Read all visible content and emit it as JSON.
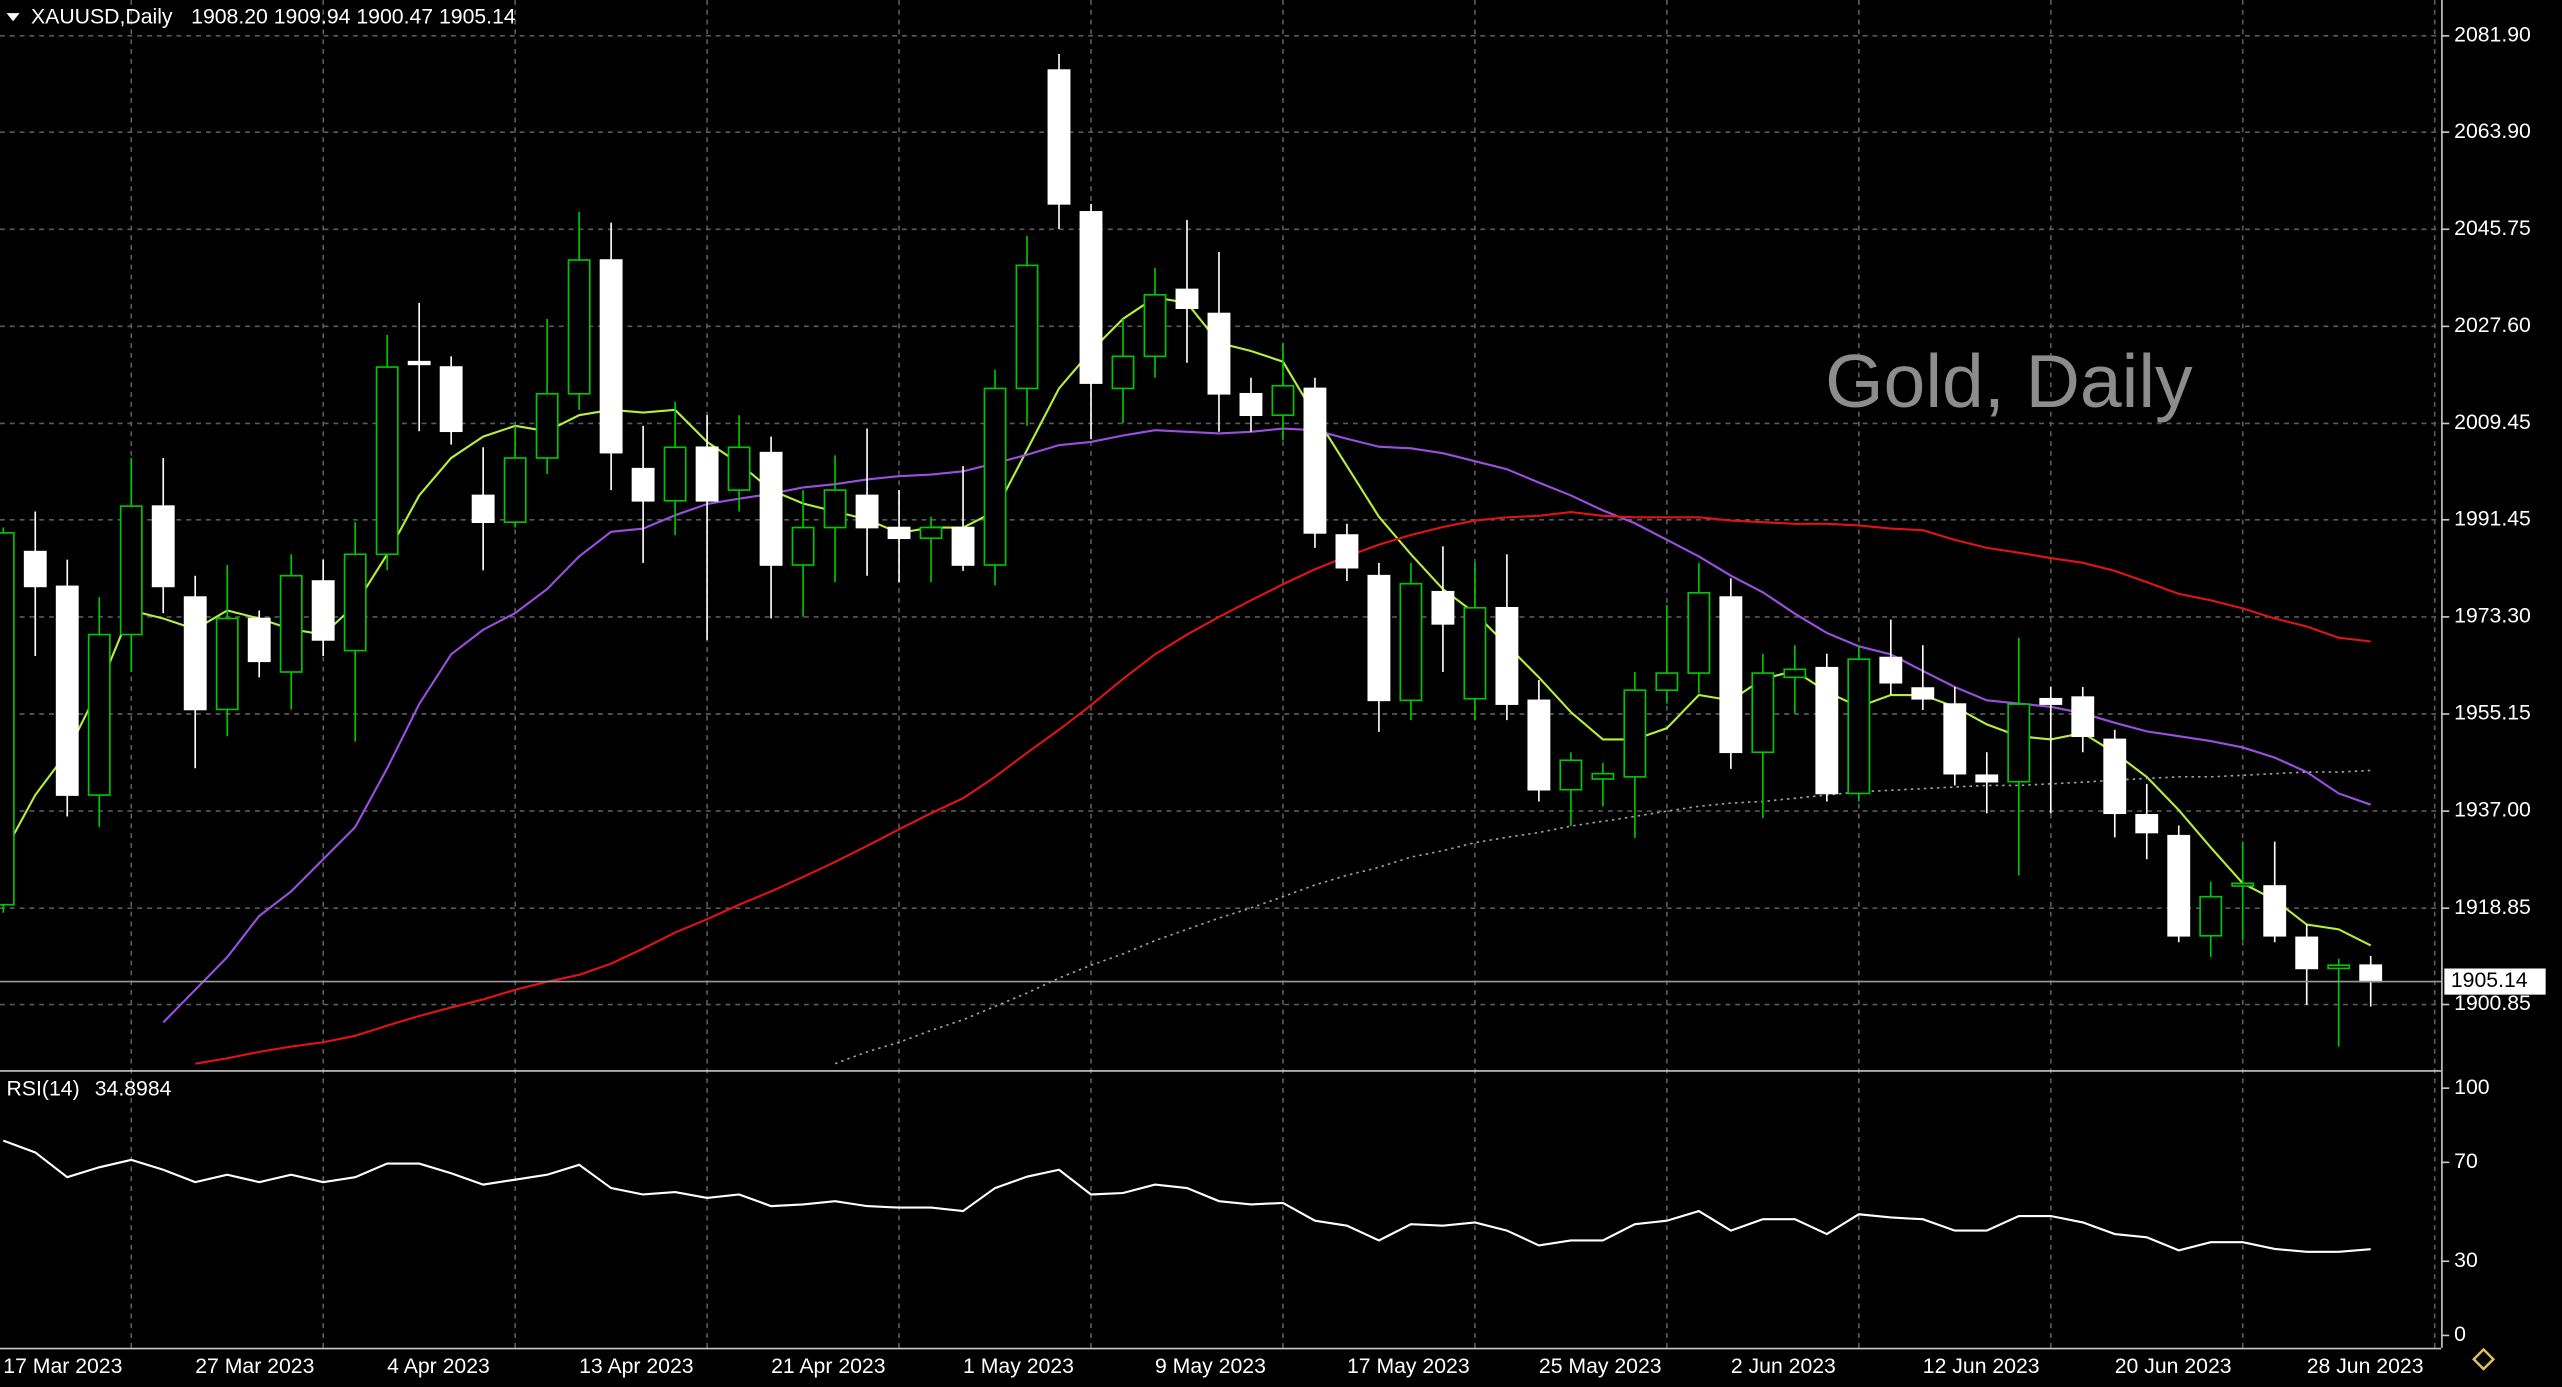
{
  "chart_data": [
    {
      "type": "candlestick",
      "symbol": "XAUUSD,Daily",
      "ohlc_header": "1908.20 1909.94 1900.47 1905.14",
      "watermark": "Gold, Daily",
      "categories": [
        "17 Mar 2023",
        null,
        null,
        null,
        null,
        null,
        "27 Mar 2023",
        null,
        null,
        null,
        null,
        null,
        "4 Apr 2023",
        null,
        null,
        null,
        null,
        null,
        "13 Apr 2023",
        null,
        null,
        null,
        null,
        null,
        "21 Apr 2023",
        null,
        null,
        null,
        null,
        null,
        "1 May 2023",
        null,
        null,
        null,
        null,
        null,
        "9 May 2023",
        null,
        null,
        null,
        null,
        null,
        "17 May 2023",
        null,
        null,
        null,
        null,
        null,
        "25 May 2023",
        null,
        null,
        null,
        null,
        null,
        "2 Jun 2023",
        null,
        null,
        null,
        null,
        null,
        "12 Jun 2023",
        null,
        null,
        null,
        null,
        null,
        "20 Jun 2023",
        null,
        null,
        null,
        null,
        null,
        "28 Jun 2023",
        null,
        null
      ],
      "open": [
        1919.5,
        1985.5,
        1979,
        1940,
        1970,
        1994,
        1977,
        1956,
        1973,
        1963,
        1980,
        1967,
        1985,
        2021,
        2020,
        1996,
        1991,
        2003,
        2015,
        2040,
        2001,
        1995,
        2005,
        1997,
        2004,
        1983,
        1990,
        1996,
        1990,
        1988,
        1990,
        1983,
        2016,
        2075.5,
        2049,
        2016,
        2022,
        2034.5,
        2030,
        2015,
        2011,
        2016,
        1988.6,
        1981,
        1957.7,
        1978,
        1958,
        1975,
        1957.7,
        1941,
        1943,
        1943.4,
        1959.6,
        1962.8,
        1977,
        1948,
        1962,
        1963.8,
        1940.3,
        1965.7,
        1960,
        1957,
        1943.7,
        1942.5,
        1958,
        1958.3,
        1950.4,
        1936.3,
        1932.4,
        1913.7,
        1923,
        1923,
        1913.4,
        1907.6,
        1908.2
      ],
      "high": [
        1990,
        1993,
        1984,
        1977,
        2003,
        2003,
        1981,
        1983,
        1974.5,
        1985,
        1984,
        1991,
        2026,
        2032,
        2022,
        2005,
        2009,
        2029,
        2049,
        2047,
        2009,
        2013.5,
        2011,
        2011,
        2007,
        1997,
        2003.5,
        2008.5,
        1997,
        1992,
        2001.5,
        2019.5,
        2044.5,
        2078.5,
        2050.5,
        2029,
        2038.5,
        2047.5,
        2041.5,
        2018,
        2024.5,
        2018,
        1990.7,
        1983.4,
        1983.4,
        1986.5,
        1983.4,
        1985,
        1961.5,
        1948,
        1946,
        1963,
        1975.5,
        1983.4,
        1980.5,
        1966.4,
        1968,
        1966.4,
        1968,
        1972.8,
        1968,
        1960.2,
        1948,
        1969.4,
        1960.2,
        1960.2,
        1952.2,
        1942.1,
        1934.3,
        1923.8,
        1931.3,
        1931.3,
        1915.8,
        1909.4,
        1909.94
      ],
      "low": [
        1918,
        1966,
        1936,
        1934,
        1963,
        1974,
        1945,
        1951,
        1962,
        1956,
        1966,
        1950,
        1982,
        2008,
        2005.5,
        1982,
        1990,
        2000,
        2012,
        1997,
        1983.4,
        1988.6,
        1969,
        1993,
        1973,
        1973.3,
        1979.8,
        1981,
        1979.8,
        1979.8,
        1981.9,
        1979.2,
        2009,
        2045.8,
        2006.5,
        2009.5,
        2018,
        2020.8,
        2007.9,
        2007.9,
        2006.3,
        1986.2,
        1980,
        1951.8,
        1954,
        1963,
        1954,
        1954,
        1938.8,
        1934.2,
        1937.9,
        1932,
        1957.1,
        1959,
        1944.9,
        1935.7,
        1955.3,
        1938.8,
        1938.8,
        1958.7,
        1955.9,
        1941.8,
        1936.6,
        1925,
        1936.6,
        1948,
        1932.1,
        1928,
        1912.5,
        1909.7,
        1912.8,
        1912.5,
        1900.8,
        1893,
        1900.47
      ],
      "close": [
        1989,
        1979,
        1940,
        1970,
        1994,
        1979,
        1956,
        1973,
        1965,
        1981,
        1969,
        1985,
        2020,
        2020.5,
        2008,
        1991,
        2003,
        2015,
        2040,
        2004,
        1995,
        2005,
        1995,
        2005,
        1983,
        1990,
        1997,
        1990,
        1988,
        1990,
        1983,
        2016,
        2039,
        2050.5,
        2017,
        2022,
        2033.5,
        2031,
        2015,
        2011,
        2016.5,
        1989,
        1982.5,
        1957.7,
        1979.5,
        1972,
        1975,
        1957,
        1941,
        1946.5,
        1944,
        1959.6,
        1962.8,
        1977.8,
        1948,
        1962.8,
        1963.5,
        1940.3,
        1965.4,
        1961,
        1958,
        1944,
        1942.5,
        1957,
        1957,
        1951,
        1936.6,
        1933,
        1913.7,
        1921,
        1923.5,
        1913.7,
        1907.6,
        1908.2,
        1905.14
      ],
      "up_color": "#00c800",
      "down_color": "#ffffff",
      "series": [
        {
          "color": "#b4f03c",
          "line_style": "solid",
          "values": [
            1929,
            1940,
            1948,
            1960,
            1974.5,
            1973,
            1971,
            1974.5,
            1973,
            1971,
            1970,
            1975.5,
            1985,
            1996,
            2003,
            2007,
            2009,
            2008,
            2011,
            2012,
            2011.5,
            2012,
            2006,
            2002,
            1997,
            1994.5,
            1993,
            1991.5,
            1989,
            1990,
            1990,
            1993,
            2004.5,
            2016,
            2023,
            2029,
            2033,
            2032,
            2024.5,
            2023,
            2021,
            2011,
            2001.5,
            1992,
            1985,
            1978.5,
            1974,
            1968,
            1962,
            1955.5,
            1950.4,
            1950.4,
            1952.5,
            1958.7,
            1957.7,
            1961.7,
            1963.2,
            1959.3,
            1956.5,
            1958.7,
            1958.7,
            1956.5,
            1953.2,
            1951,
            1950.4,
            1951.6,
            1947.9,
            1943.4,
            1937.2,
            1930.2,
            1923.5,
            1920.4,
            1915.8,
            1914.9,
            1911.9
          ]
        },
        {
          "color": "#9b4fe0",
          "line_style": "solid",
          "values": [
            null,
            null,
            null,
            null,
            null,
            1897.5,
            1903.6,
            1909.7,
            1917.4,
            1922,
            1928,
            1934,
            1945,
            1957,
            1966.3,
            1970.9,
            1974,
            1978.5,
            1984.6,
            1989.2,
            1989.8,
            1992.3,
            1994.4,
            1995.4,
            1996.3,
            1997.5,
            1998.1,
            1999,
            1999.6,
            1999.9,
            2000.5,
            2002,
            2003.6,
            2005.4,
            2006,
            2007.2,
            2008.2,
            2007.9,
            2007.6,
            2007.9,
            2008.5,
            2008.2,
            2006.6,
            2005.1,
            2004.8,
            2003.9,
            2002.4,
            2000.9,
            1998.4,
            1996,
            1993.2,
            1990.8,
            1987.7,
            1984.6,
            1981,
            1977.9,
            1973.9,
            1970.3,
            1967.8,
            1966.3,
            1963.2,
            1960.2,
            1957.7,
            1957.1,
            1956.5,
            1955.3,
            1953.5,
            1951.9,
            1951,
            1950.1,
            1948.9,
            1947,
            1944.3,
            1940.3,
            1938.2
          ]
        },
        {
          "color": "#e01414",
          "line_style": "solid",
          "values": [
            null,
            null,
            null,
            null,
            null,
            null,
            1889.8,
            1890.8,
            1892,
            1893,
            1893.8,
            1895,
            1896.9,
            1898.7,
            1900.3,
            1901.8,
            1903.6,
            1905.1,
            1906.4,
            1908.5,
            1911.3,
            1914.3,
            1916.8,
            1919.5,
            1922,
            1924.7,
            1927.5,
            1930.5,
            1933.6,
            1936.6,
            1939.4,
            1943.4,
            1947.9,
            1952.2,
            1956.8,
            1961.7,
            1966.3,
            1970,
            1973.3,
            1976.4,
            1979.4,
            1982.2,
            1984.6,
            1986.8,
            1988.6,
            1990.1,
            1991.3,
            1991.9,
            1992.2,
            1992.9,
            1992.2,
            1991.9,
            1991.9,
            1991.9,
            1991.3,
            1991,
            1990.7,
            1990.7,
            1990.4,
            1989.8,
            1989.5,
            1987.7,
            1986.2,
            1985.3,
            1984.3,
            1983.4,
            1981.9,
            1979.8,
            1977.6,
            1976.4,
            1974.9,
            1973,
            1971.5,
            1969.4,
            1968.7
          ]
        },
        {
          "color": "#a0a0a0",
          "line_style": "dotted",
          "values": [
            null,
            null,
            null,
            null,
            null,
            null,
            null,
            null,
            null,
            null,
            null,
            null,
            null,
            null,
            null,
            null,
            null,
            null,
            null,
            null,
            null,
            null,
            null,
            null,
            null,
            null,
            1889.8,
            1892,
            1893.8,
            1896,
            1898,
            1900.5,
            1903,
            1905.8,
            1908.2,
            1910.3,
            1912.8,
            1914.9,
            1917,
            1918.9,
            1921,
            1923.2,
            1925,
            1926.5,
            1928.4,
            1929.6,
            1931.1,
            1932.1,
            1933,
            1934.2,
            1935.1,
            1936,
            1937,
            1937.9,
            1938.5,
            1938.8,
            1939.4,
            1940,
            1940.6,
            1940.9,
            1941.2,
            1941.5,
            1941.8,
            1941.8,
            1942.1,
            1942.4,
            1942.8,
            1943.1,
            1943.4,
            1943.4,
            1943.7,
            1944,
            1944.3,
            1944.3,
            1944.6
          ]
        }
      ],
      "ylim": [
        1888.6,
        2088.6
      ],
      "yticks": [
        1900.85,
        1918.85,
        {
          "value": 1937,
          "label": "1937.00"
        },
        1955.15,
        {
          "value": 1973.3,
          "label": "1973.30"
        },
        1991.45,
        2009.45,
        {
          "value": 2027.6,
          "label": "2027.60"
        },
        2045.75,
        {
          "value": 2063.9,
          "label": "2063.90"
        },
        {
          "value": 2081.9,
          "label": "2081.90"
        }
      ],
      "grid": true
    },
    {
      "type": "line",
      "title": "RSI(14)",
      "series": [
        {
          "color": "#ffffff",
          "values": [
            78.8,
            74,
            64,
            68,
            71,
            67,
            62,
            65,
            62,
            65,
            62,
            64,
            69.5,
            69.5,
            65.6,
            61,
            63,
            65,
            69,
            59.6,
            57,
            58,
            55.6,
            57,
            52.3,
            53,
            54.3,
            52.3,
            51.7,
            51.7,
            50.3,
            59.6,
            64.2,
            67,
            57,
            57.6,
            61,
            59.6,
            54.3,
            53,
            53.6,
            46.4,
            44.4,
            38.4,
            45,
            44.4,
            45.7,
            42.4,
            36.4,
            38.4,
            38.4,
            45,
            46.4,
            50.3,
            42.4,
            47,
            47,
            41,
            49,
            47.7,
            47,
            42.4,
            42.4,
            48.3,
            48.3,
            45.7,
            41,
            39.7,
            34.4,
            37.7,
            37.7,
            35,
            33.8,
            33.8,
            34.8984
          ]
        }
      ],
      "ylim": [
        -5,
        106
      ],
      "yticks": [
        0,
        30,
        70,
        100
      ]
    }
  ]
}
